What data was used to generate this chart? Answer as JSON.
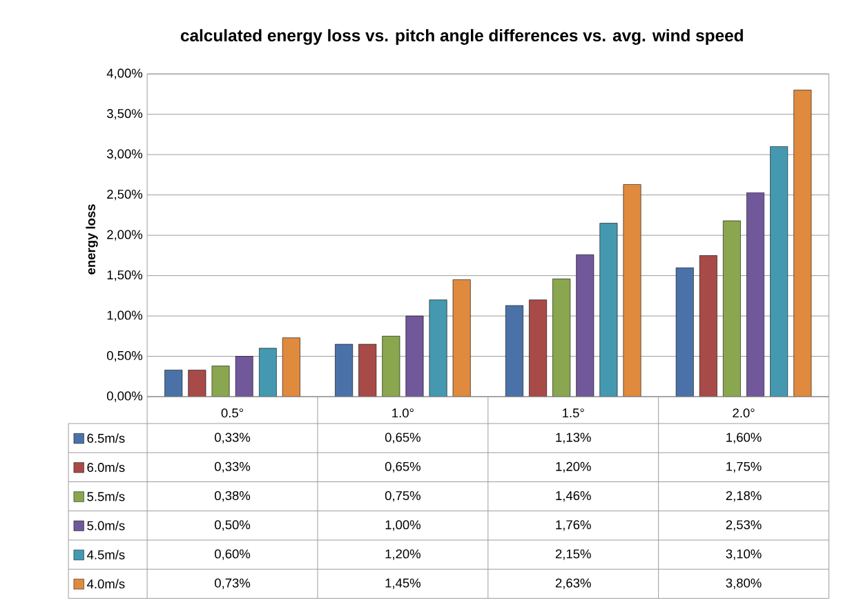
{
  "chart_data": {
    "type": "bar",
    "title": "calculated energy loss vs. pitch angle differences vs. avg. wind speed",
    "ylabel": "energy loss",
    "categories": [
      "0.5°",
      "1.0°",
      "1.5°",
      "2.0°"
    ],
    "series": [
      {
        "name": "6.5m/s",
        "color": "#4a72a8",
        "values": [
          0.33,
          0.65,
          1.13,
          1.6
        ],
        "value_labels": [
          "0,33%",
          "0,65%",
          "1,13%",
          "1,60%"
        ]
      },
      {
        "name": "6.0m/s",
        "color": "#a84a48",
        "values": [
          0.33,
          0.65,
          1.2,
          1.75
        ],
        "value_labels": [
          "0,33%",
          "0,65%",
          "1,20%",
          "1,75%"
        ]
      },
      {
        "name": "5.5m/s",
        "color": "#8aa64e",
        "values": [
          0.38,
          0.75,
          1.46,
          2.18
        ],
        "value_labels": [
          "0,38%",
          "0,75%",
          "1,46%",
          "2,18%"
        ]
      },
      {
        "name": "5.0m/s",
        "color": "#70589a",
        "values": [
          0.5,
          1.0,
          1.76,
          2.53
        ],
        "value_labels": [
          "0,50%",
          "1,00%",
          "1,76%",
          "2,53%"
        ]
      },
      {
        "name": "4.5m/s",
        "color": "#4499b0",
        "values": [
          0.6,
          1.2,
          2.15,
          3.1
        ],
        "value_labels": [
          "0,60%",
          "1,20%",
          "2,15%",
          "3,10%"
        ]
      },
      {
        "name": "4.0m/s",
        "color": "#e08a3e",
        "values": [
          0.73,
          1.45,
          2.63,
          3.8
        ],
        "value_labels": [
          "0,73%",
          "1,45%",
          "2,63%",
          "3,80%"
        ]
      }
    ],
    "ylim": [
      0,
      4
    ],
    "yticks": [
      {
        "value": 0,
        "label": "0,00%"
      },
      {
        "value": 0.5,
        "label": "0,50%"
      },
      {
        "value": 1,
        "label": "1,00%"
      },
      {
        "value": 1.5,
        "label": "1,50%"
      },
      {
        "value": 2,
        "label": "2,00%"
      },
      {
        "value": 2.5,
        "label": "2,50%"
      },
      {
        "value": 3,
        "label": "3,00%"
      },
      {
        "value": 3.5,
        "label": "3,50%"
      },
      {
        "value": 4,
        "label": "4,00%"
      }
    ],
    "grid": "y",
    "legend": "bottom"
  }
}
